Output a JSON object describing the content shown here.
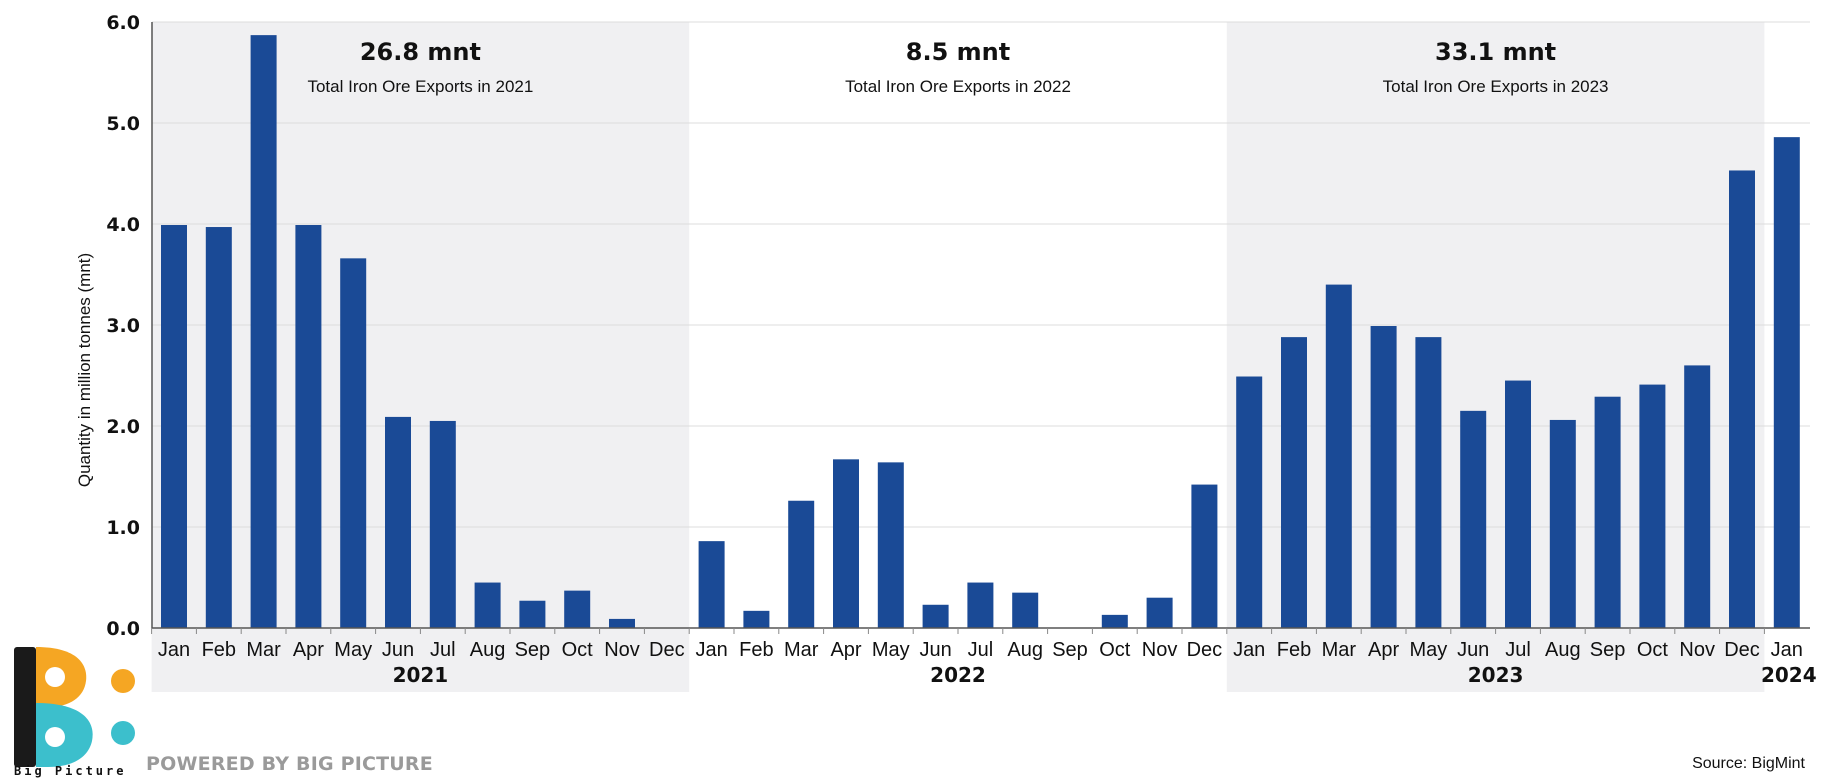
{
  "chart_data": {
    "type": "bar",
    "ylabel": "Quantity in million tonnes (mnt)",
    "ylim": [
      0,
      6
    ],
    "yticks": [
      "0.0",
      "1.0",
      "2.0",
      "3.0",
      "4.0",
      "5.0",
      "6.0"
    ],
    "grid": "horizontal",
    "bar_color": "#1a4a96",
    "shade_color": "#f0f0f2",
    "categories": [
      "Jan",
      "Feb",
      "Mar",
      "Apr",
      "May",
      "Jun",
      "Jul",
      "Aug",
      "Sep",
      "Oct",
      "Nov",
      "Dec",
      "Jan",
      "Feb",
      "Mar",
      "Apr",
      "May",
      "Jun",
      "Jul",
      "Aug",
      "Sep",
      "Oct",
      "Nov",
      "Dec",
      "Jan",
      "Feb",
      "Mar",
      "Apr",
      "May",
      "Jun",
      "Jul",
      "Aug",
      "Sep",
      "Oct",
      "Nov",
      "Dec",
      "Jan"
    ],
    "values": [
      3.99,
      3.97,
      5.87,
      3.99,
      3.66,
      2.09,
      2.05,
      0.45,
      0.27,
      0.37,
      0.09,
      0,
      0.86,
      0.17,
      1.26,
      1.67,
      1.64,
      0.23,
      0.45,
      0.35,
      0,
      0.13,
      0.3,
      1.42,
      2.49,
      2.88,
      3.4,
      2.99,
      2.88,
      2.15,
      2.45,
      2.06,
      2.29,
      2.41,
      2.6,
      4.53,
      4.86
    ],
    "year_groups": [
      {
        "label": "2021",
        "start": 0,
        "count": 12,
        "shaded": true,
        "total": "26.8 mnt",
        "subtitle": "Total Iron Ore Exports in 2021"
      },
      {
        "label": "2022",
        "start": 12,
        "count": 12,
        "shaded": false,
        "total": "8.5 mnt",
        "subtitle": "Total Iron Ore Exports in 2022"
      },
      {
        "label": "2023",
        "start": 24,
        "count": 12,
        "shaded": true,
        "total": "33.1 mnt",
        "subtitle": "Total Iron Ore Exports in 2023"
      },
      {
        "label": "2024",
        "start": 36,
        "count": 1,
        "shaded": false,
        "total": "",
        "subtitle": ""
      }
    ]
  },
  "footer": {
    "powered_by": "POWERED BY BIG PICTURE",
    "source": "Source: BigMint",
    "logo_text": "Big Picture",
    "logo_colors": {
      "orange": "#f5a623",
      "teal": "#3cbfcc",
      "dark": "#1a1a1a"
    }
  }
}
